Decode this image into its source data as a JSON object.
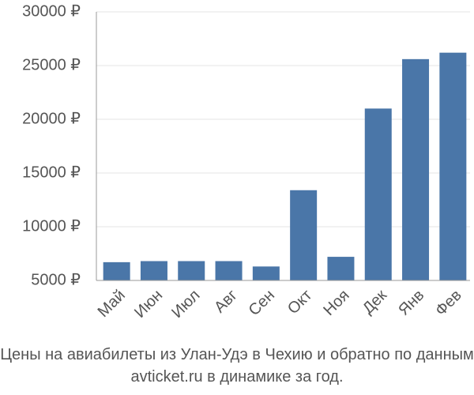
{
  "chart_data": {
    "type": "bar",
    "title": "Цены на авиабилеты из Улан-Удэ в Чехию и обратно по данным avticket.ru в динамике за год.",
    "categories": [
      "Май",
      "Июн",
      "Июл",
      "Авг",
      "Сен",
      "Окт",
      "Ноя",
      "Дек",
      "Янв",
      "Фев"
    ],
    "values": [
      6700,
      6800,
      6800,
      6800,
      6300,
      13400,
      7200,
      21000,
      25600,
      26200
    ],
    "color": "#4a76a8",
    "ylim": [
      5000,
      30000
    ],
    "yticks": [
      {
        "value": 5000,
        "label": "5000 ₽"
      },
      {
        "value": 10000,
        "label": "10000 ₽"
      },
      {
        "value": 15000,
        "label": "15000 ₽"
      },
      {
        "value": 20000,
        "label": "20000 ₽"
      },
      {
        "value": 25000,
        "label": "25000 ₽"
      },
      {
        "value": 30000,
        "label": "30000 ₽"
      }
    ],
    "grid": true
  }
}
